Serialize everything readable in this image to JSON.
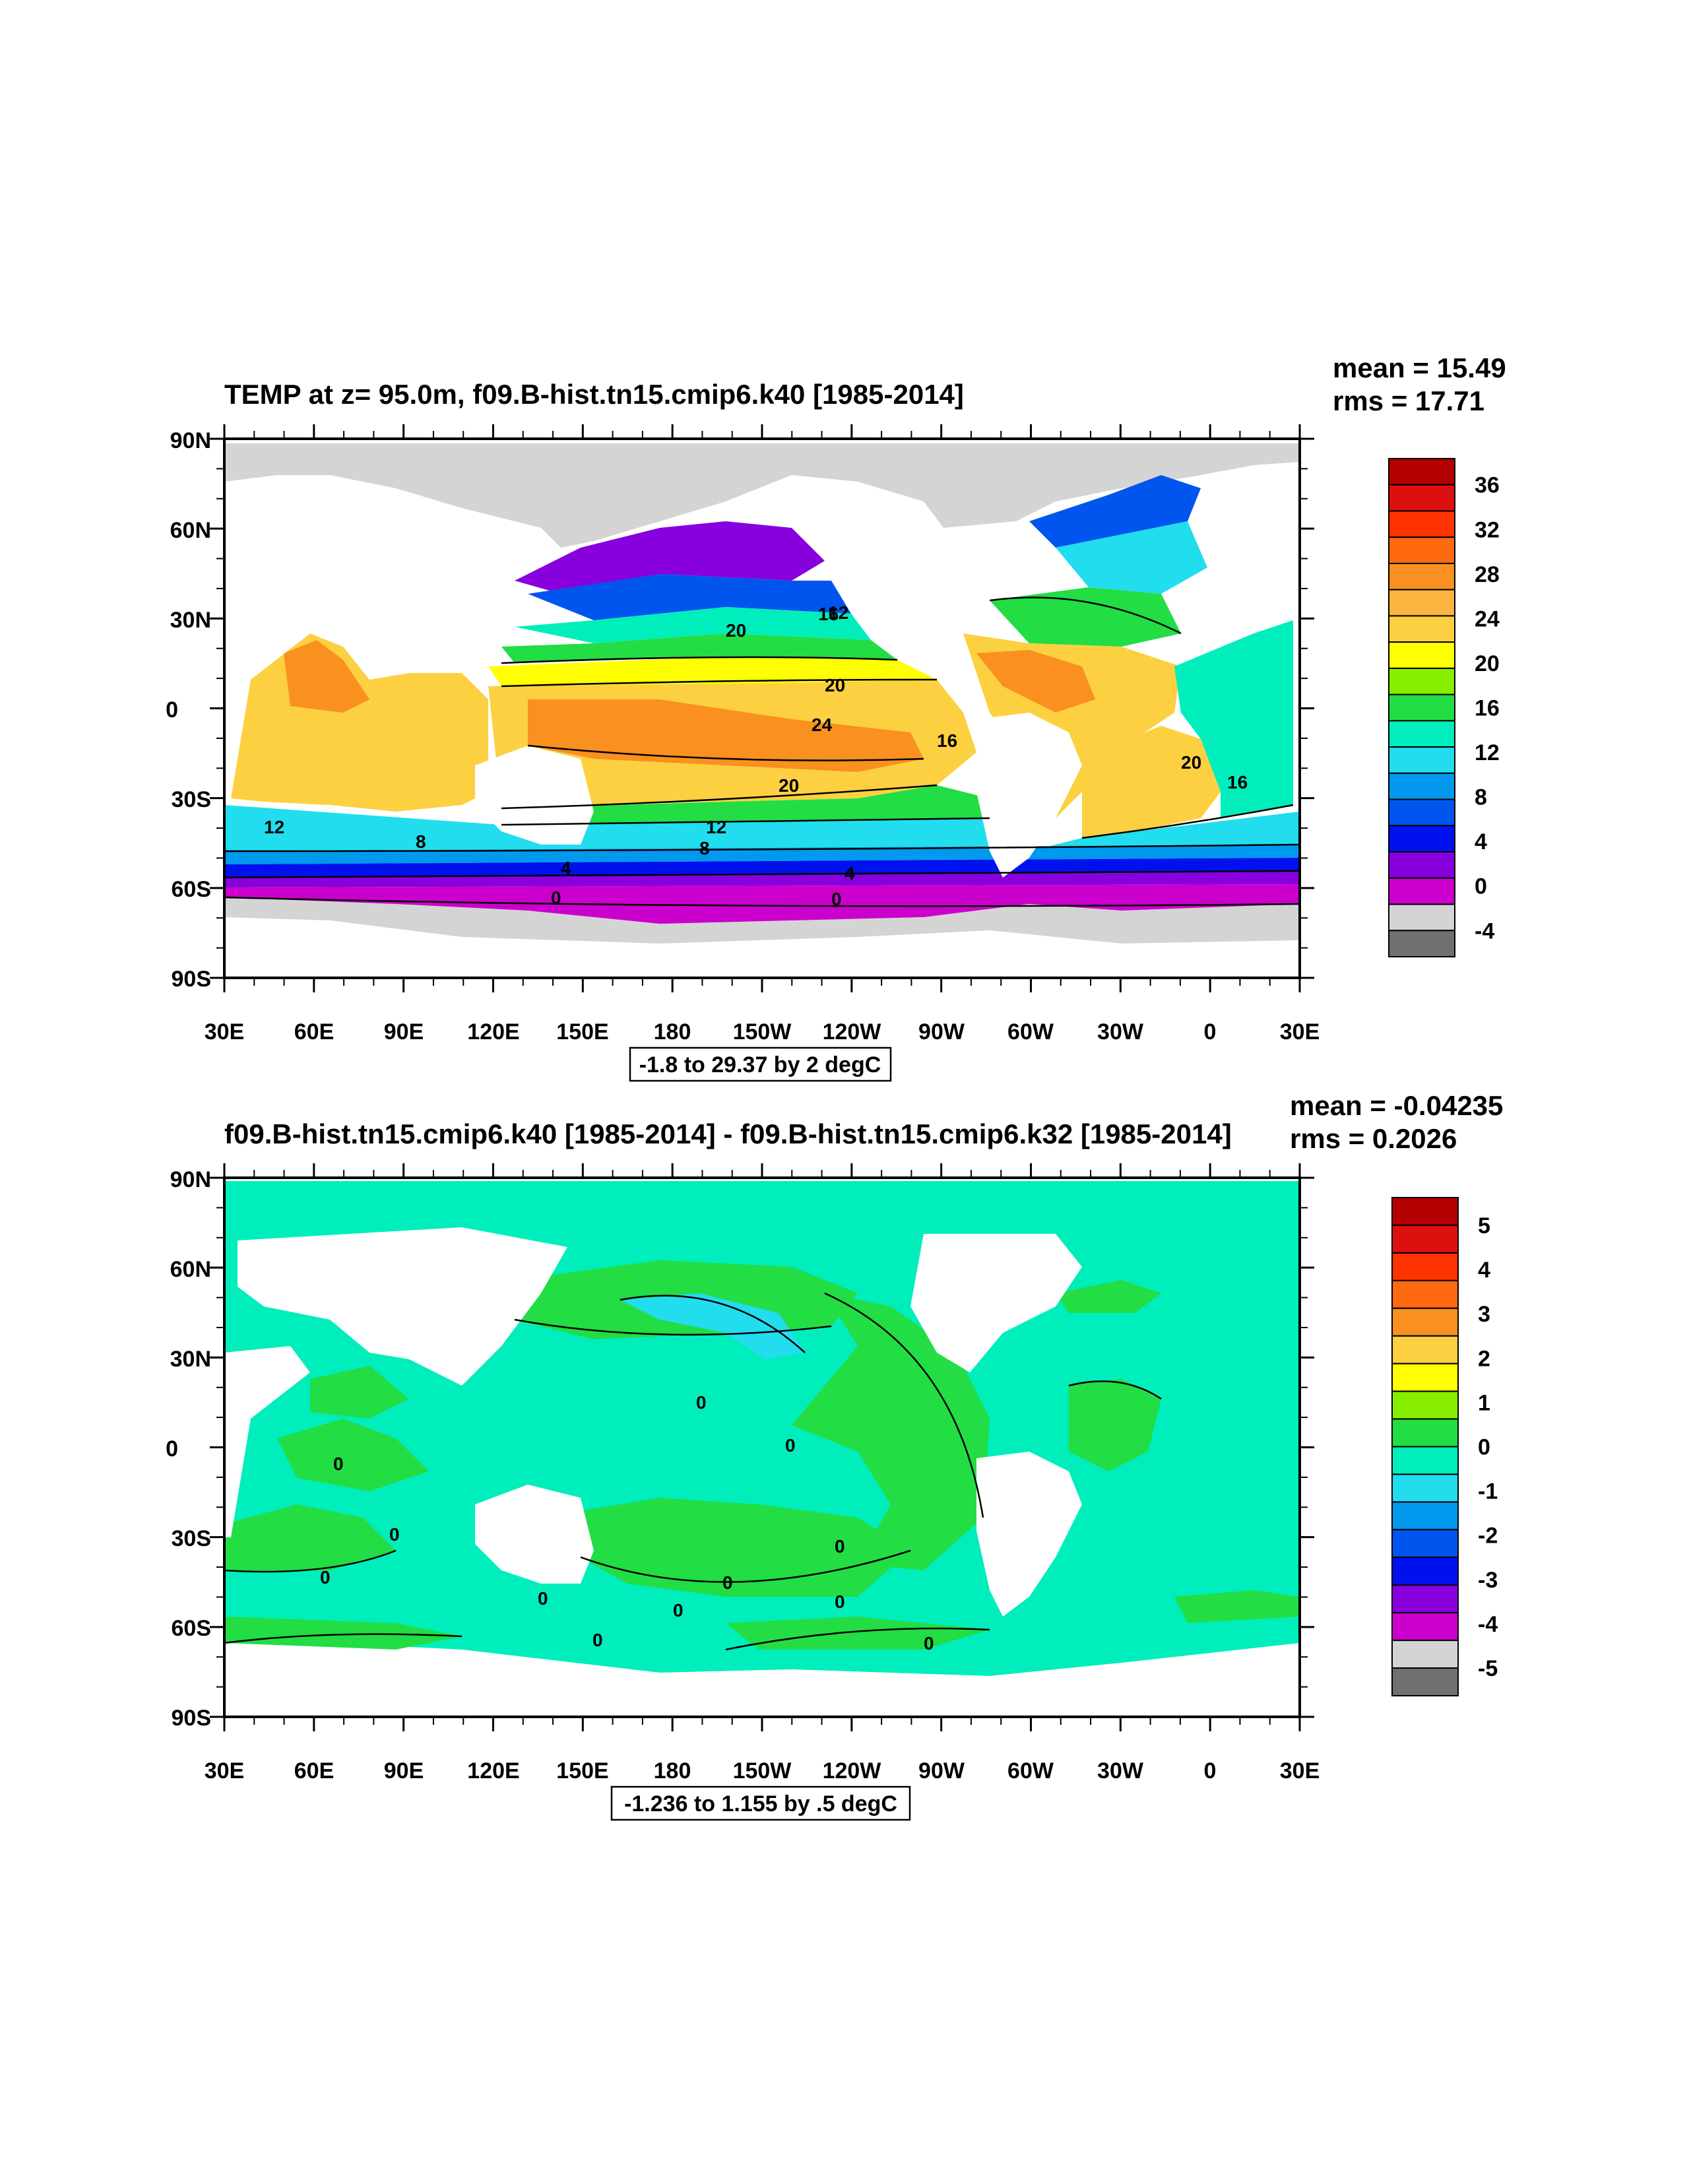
{
  "panels": [
    {
      "id": "top",
      "title": "TEMP at z=  95.0m, f09.B-hist.tn15.cmip6.k40 [1985-2014]",
      "mean_text": "mean = 15.49",
      "rms_text": "rms = 17.71",
      "range_text": "-1.8 to 29.37 by 2 degC",
      "lat_labels": [
        "90N",
        "60N",
        "30N",
        "0",
        "30S",
        "60S",
        "90S"
      ],
      "lon_labels": [
        "30E",
        "60E",
        "90E",
        "120E",
        "150E",
        "180",
        "150W",
        "120W",
        "90W",
        "60W",
        "30W",
        "0",
        "30E"
      ],
      "colorbar": {
        "labels": [
          "36",
          "32",
          "28",
          "24",
          "20",
          "16",
          "12",
          "8",
          "4",
          "0",
          "-4"
        ],
        "colors": [
          "#b30000",
          "#dd1010",
          "#ff3300",
          "#ff6a10",
          "#f99020",
          "#fbb440",
          "#fcd040",
          "#ffff00",
          "#88ee00",
          "#22dd44",
          "#00eebb",
          "#22ddee",
          "#0099ee",
          "#0055ee",
          "#0011ee",
          "#8800dd",
          "#cc00cc",
          "#d4d4d4",
          "#707070"
        ]
      },
      "contour_labels": [
        "20",
        "16",
        "20",
        "24",
        "16",
        "20",
        "12",
        "12",
        "8",
        "8",
        "4",
        "4",
        "0",
        "0",
        "20",
        "16",
        "12"
      ]
    },
    {
      "id": "bottom",
      "title": "f09.B-hist.tn15.cmip6.k40 [1985-2014] - f09.B-hist.tn15.cmip6.k32 [1985-2014]",
      "mean_text": "mean = -0.04235",
      "rms_text": "rms = 0.2026",
      "range_text": "-1.236 to 1.155 by .5 degC",
      "lat_labels": [
        "90N",
        "60N",
        "30N",
        "0",
        "30S",
        "60S",
        "90S"
      ],
      "lon_labels": [
        "30E",
        "60E",
        "90E",
        "120E",
        "150E",
        "180",
        "150W",
        "120W",
        "90W",
        "60W",
        "30W",
        "0",
        "30E"
      ],
      "colorbar": {
        "labels": [
          "5",
          "4",
          "3",
          "2",
          "1",
          "0",
          "-1",
          "-2",
          "-3",
          "-4",
          "-5"
        ],
        "colors": [
          "#b30000",
          "#dd1010",
          "#ff3300",
          "#ff6a10",
          "#f99020",
          "#fcd040",
          "#ffff00",
          "#88ee00",
          "#22dd44",
          "#00eebb",
          "#22ddee",
          "#0099ee",
          "#0055ee",
          "#0011ee",
          "#8800dd",
          "#cc00cc",
          "#d4d4d4",
          "#707070"
        ]
      },
      "contour_labels": [
        "0",
        "0",
        "0",
        "0",
        "0",
        "0",
        "0",
        "0",
        "0",
        "0",
        "0",
        "0"
      ]
    }
  ]
}
